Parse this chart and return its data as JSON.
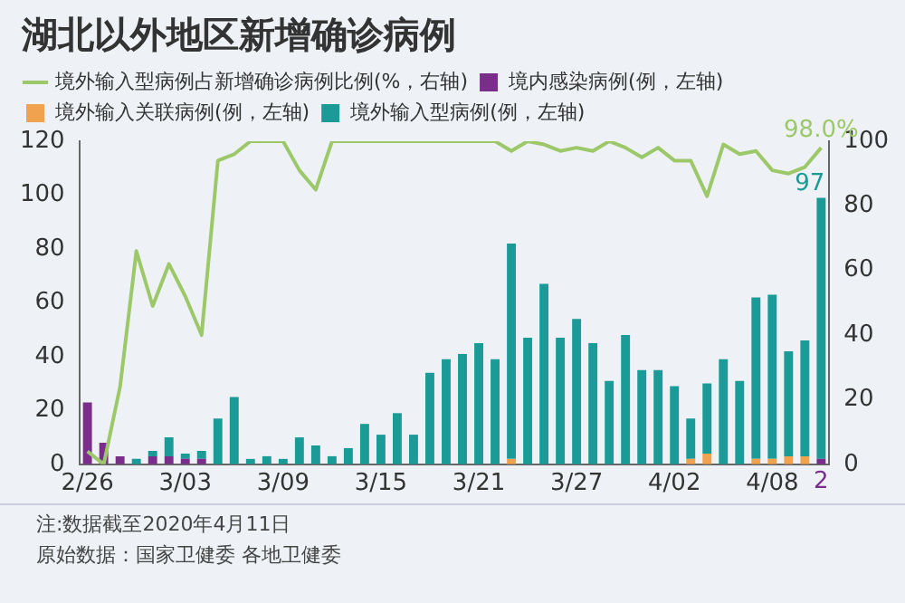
{
  "chart_data": {
    "type": "bar",
    "title": "湖北以外地区新增确诊病例",
    "stacked": true,
    "categories": [
      "2/26",
      null,
      null,
      null,
      null,
      null,
      "3/03",
      null,
      null,
      null,
      null,
      null,
      "3/09",
      null,
      null,
      null,
      null,
      null,
      "3/15",
      null,
      null,
      null,
      null,
      null,
      "3/21",
      null,
      null,
      null,
      null,
      null,
      "3/27",
      null,
      null,
      null,
      null,
      null,
      "4/02",
      null,
      null,
      null,
      null,
      null,
      "4/08",
      null,
      null,
      null
    ],
    "series": [
      {
        "name": "境内感染病例(例，左轴)",
        "color": "#7b2d8b",
        "values": [
          23,
          8,
          3,
          0,
          3,
          3,
          2,
          2,
          0,
          0,
          0,
          0,
          0,
          0,
          0,
          0,
          0,
          0,
          0,
          0,
          0,
          0,
          0,
          0,
          0,
          0,
          0,
          0,
          0,
          0,
          0,
          0,
          0,
          0,
          0,
          0,
          0,
          0,
          0,
          0,
          0,
          0,
          0,
          0,
          0,
          2
        ],
        "value_labels": [
          null,
          null,
          null,
          null,
          null,
          null,
          null,
          null,
          null,
          null,
          null,
          null,
          null,
          null,
          null,
          null,
          null,
          null,
          null,
          null,
          null,
          null,
          null,
          null,
          null,
          null,
          null,
          null,
          null,
          null,
          null,
          null,
          null,
          null,
          null,
          null,
          null,
          null,
          null,
          null,
          null,
          null,
          null,
          null,
          null,
          "2"
        ]
      },
      {
        "name": "境外输入关联病例(例，左轴)",
        "color": "#f0a24e",
        "values": [
          0,
          0,
          0,
          0,
          0,
          0,
          0,
          0,
          0,
          0,
          0,
          0,
          0,
          0,
          0,
          0,
          0,
          0,
          0,
          0,
          0,
          0,
          0,
          0,
          0,
          0,
          2,
          0,
          0,
          0,
          0,
          0,
          0,
          0,
          0,
          0,
          0,
          2,
          4,
          0,
          0,
          2,
          2,
          3,
          3,
          0
        ]
      },
      {
        "name": "境外输入型病例(例，左轴)",
        "color": "#1b9b98",
        "values": [
          0,
          0,
          0,
          2,
          2,
          7,
          2,
          3,
          17,
          25,
          2,
          3,
          2,
          10,
          7,
          3,
          6,
          15,
          11,
          19,
          11,
          34,
          39,
          41,
          45,
          39,
          80,
          47,
          67,
          47,
          54,
          45,
          31,
          48,
          35,
          35,
          29,
          15,
          26,
          39,
          31,
          60,
          61,
          39,
          43,
          97
        ],
        "value_labels": [
          null,
          null,
          null,
          null,
          null,
          null,
          null,
          null,
          null,
          null,
          null,
          null,
          null,
          null,
          null,
          null,
          null,
          null,
          null,
          null,
          null,
          null,
          null,
          null,
          null,
          null,
          null,
          null,
          null,
          null,
          null,
          null,
          null,
          null,
          null,
          null,
          null,
          null,
          null,
          null,
          null,
          null,
          null,
          null,
          null,
          "97"
        ]
      },
      {
        "name": "境外输入型病例占新增确诊病例比例(%，右轴)",
        "type": "line",
        "axis": "y2",
        "color": "#9dc86a",
        "values": [
          4,
          0,
          24,
          66,
          49,
          62,
          52,
          40,
          94,
          96,
          100,
          100,
          100,
          91,
          85,
          100,
          100,
          100,
          100,
          100,
          100,
          100,
          100,
          100,
          100,
          100,
          97,
          100,
          99,
          97,
          98,
          97,
          100,
          98,
          95,
          98,
          94,
          94,
          83,
          99,
          96,
          97,
          91,
          90,
          92,
          98.0
        ],
        "value_labels": [
          null,
          null,
          null,
          null,
          null,
          null,
          null,
          null,
          null,
          null,
          null,
          null,
          null,
          null,
          null,
          null,
          null,
          null,
          null,
          null,
          null,
          null,
          null,
          null,
          null,
          null,
          null,
          null,
          null,
          null,
          null,
          null,
          null,
          null,
          null,
          null,
          null,
          null,
          null,
          null,
          null,
          null,
          null,
          null,
          null,
          "98.0%"
        ]
      }
    ],
    "ylim": [
      0,
      120
    ],
    "yticks": [
      0,
      20,
      40,
      60,
      80,
      100,
      120
    ],
    "y2lim": [
      0,
      100
    ],
    "y2ticks": [
      0,
      20,
      40,
      60,
      80,
      100
    ],
    "grid": false,
    "legend": "top",
    "marker": "none",
    "line_style": "solid",
    "annotations": [
      "注:数据截至2020年4月11日",
      "原始数据：国家卫健委 各地卫健委"
    ]
  }
}
